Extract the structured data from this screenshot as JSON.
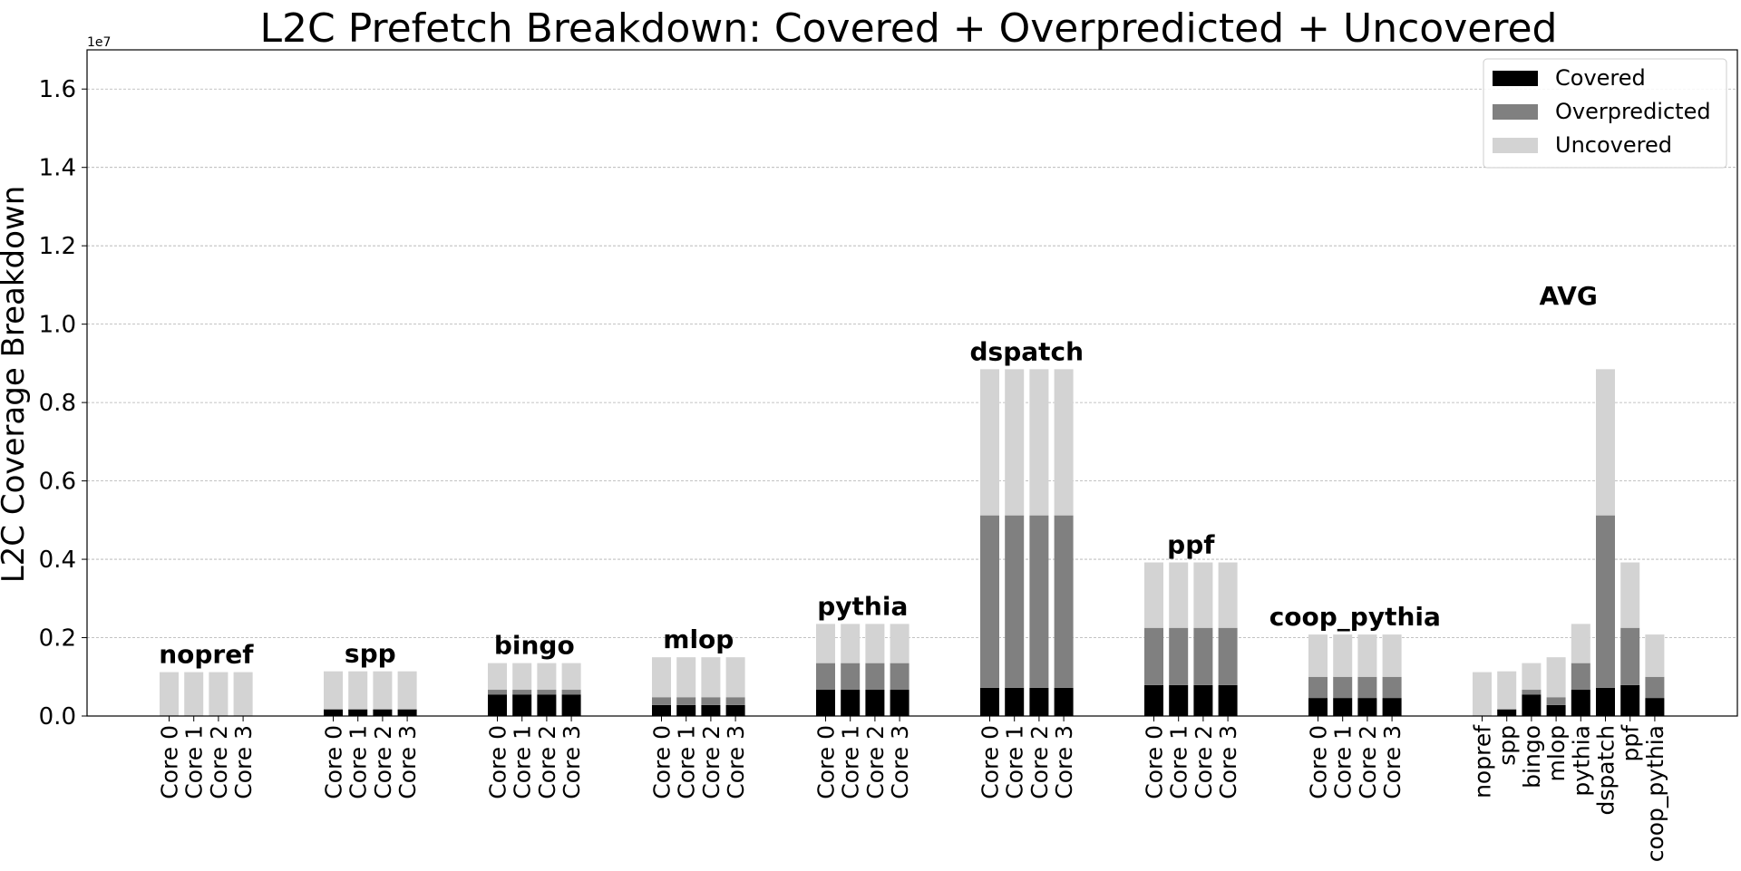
{
  "chart_data": {
    "type": "bar",
    "stacked": true,
    "title": "L2C Prefetch Breakdown: Covered + Overpredicted + Uncovered",
    "ylabel": "L2C Coverage Breakdown",
    "xlabel": "",
    "y_offset_label": "1e7",
    "ylim": [
      0,
      1.7
    ],
    "yticks": [
      0.0,
      0.2,
      0.4,
      0.6,
      0.8,
      1.0,
      1.2,
      1.4,
      1.6
    ],
    "ytick_labels": [
      "0.0",
      "0.2",
      "0.4",
      "0.6",
      "0.8",
      "1.0",
      "1.2",
      "1.4",
      "1.6"
    ],
    "grid": "horizontal-dashed",
    "legend_position": "top-right",
    "series_names": [
      "Covered",
      "Overpredicted",
      "Uncovered"
    ],
    "colors": [
      "#000000",
      "#808080",
      "#d3d3d3"
    ],
    "groups": [
      {
        "label": "nopref",
        "bars": [
          {
            "label": "Core 0",
            "covered": 0.0,
            "overpredicted": 0.0,
            "uncovered": 0.112
          },
          {
            "label": "Core 1",
            "covered": 0.0,
            "overpredicted": 0.0,
            "uncovered": 0.112
          },
          {
            "label": "Core 2",
            "covered": 0.0,
            "overpredicted": 0.0,
            "uncovered": 0.112
          },
          {
            "label": "Core 3",
            "covered": 0.0,
            "overpredicted": 0.0,
            "uncovered": 0.112
          }
        ]
      },
      {
        "label": "spp",
        "bars": [
          {
            "label": "Core 0",
            "covered": 0.017,
            "overpredicted": 0.0,
            "uncovered": 0.097
          },
          {
            "label": "Core 1",
            "covered": 0.017,
            "overpredicted": 0.0,
            "uncovered": 0.097
          },
          {
            "label": "Core 2",
            "covered": 0.017,
            "overpredicted": 0.0,
            "uncovered": 0.097
          },
          {
            "label": "Core 3",
            "covered": 0.017,
            "overpredicted": 0.0,
            "uncovered": 0.097
          }
        ]
      },
      {
        "label": "bingo",
        "bars": [
          {
            "label": "Core 0",
            "covered": 0.055,
            "overpredicted": 0.012,
            "uncovered": 0.068
          },
          {
            "label": "Core 1",
            "covered": 0.055,
            "overpredicted": 0.012,
            "uncovered": 0.068
          },
          {
            "label": "Core 2",
            "covered": 0.055,
            "overpredicted": 0.012,
            "uncovered": 0.068
          },
          {
            "label": "Core 3",
            "covered": 0.055,
            "overpredicted": 0.012,
            "uncovered": 0.068
          }
        ]
      },
      {
        "label": "mlop",
        "bars": [
          {
            "label": "Core 0",
            "covered": 0.028,
            "overpredicted": 0.02,
            "uncovered": 0.102
          },
          {
            "label": "Core 1",
            "covered": 0.028,
            "overpredicted": 0.02,
            "uncovered": 0.102
          },
          {
            "label": "Core 2",
            "covered": 0.028,
            "overpredicted": 0.02,
            "uncovered": 0.102
          },
          {
            "label": "Core 3",
            "covered": 0.028,
            "overpredicted": 0.02,
            "uncovered": 0.102
          }
        ]
      },
      {
        "label": "pythia",
        "bars": [
          {
            "label": "Core 0",
            "covered": 0.067,
            "overpredicted": 0.068,
            "uncovered": 0.1
          },
          {
            "label": "Core 1",
            "covered": 0.067,
            "overpredicted": 0.068,
            "uncovered": 0.1
          },
          {
            "label": "Core 2",
            "covered": 0.067,
            "overpredicted": 0.068,
            "uncovered": 0.1
          },
          {
            "label": "Core 3",
            "covered": 0.067,
            "overpredicted": 0.068,
            "uncovered": 0.1
          }
        ]
      },
      {
        "label": "dspatch",
        "bars": [
          {
            "label": "Core 0",
            "covered": 0.072,
            "overpredicted": 0.44,
            "uncovered": 0.373
          },
          {
            "label": "Core 1",
            "covered": 0.072,
            "overpredicted": 0.44,
            "uncovered": 0.373
          },
          {
            "label": "Core 2",
            "covered": 0.072,
            "overpredicted": 0.44,
            "uncovered": 0.373
          },
          {
            "label": "Core 3",
            "covered": 0.072,
            "overpredicted": 0.44,
            "uncovered": 0.373
          }
        ]
      },
      {
        "label": "ppf",
        "bars": [
          {
            "label": "Core 0",
            "covered": 0.079,
            "overpredicted": 0.146,
            "uncovered": 0.167
          },
          {
            "label": "Core 1",
            "covered": 0.079,
            "overpredicted": 0.146,
            "uncovered": 0.167
          },
          {
            "label": "Core 2",
            "covered": 0.079,
            "overpredicted": 0.146,
            "uncovered": 0.167
          },
          {
            "label": "Core 3",
            "covered": 0.079,
            "overpredicted": 0.146,
            "uncovered": 0.167
          }
        ]
      },
      {
        "label": "coop_pythia",
        "bars": [
          {
            "label": "Core 0",
            "covered": 0.046,
            "overpredicted": 0.054,
            "uncovered": 0.108
          },
          {
            "label": "Core 1",
            "covered": 0.046,
            "overpredicted": 0.054,
            "uncovered": 0.108
          },
          {
            "label": "Core 2",
            "covered": 0.046,
            "overpredicted": 0.054,
            "uncovered": 0.108
          },
          {
            "label": "Core 3",
            "covered": 0.046,
            "overpredicted": 0.054,
            "uncovered": 0.108
          }
        ]
      },
      {
        "label": "AVG",
        "label_y": 1.05,
        "bars": [
          {
            "label": "nopref",
            "covered": 0.0,
            "overpredicted": 0.0,
            "uncovered": 0.112
          },
          {
            "label": "spp",
            "covered": 0.017,
            "overpredicted": 0.0,
            "uncovered": 0.097
          },
          {
            "label": "bingo",
            "covered": 0.055,
            "overpredicted": 0.012,
            "uncovered": 0.068
          },
          {
            "label": "mlop",
            "covered": 0.028,
            "overpredicted": 0.02,
            "uncovered": 0.102
          },
          {
            "label": "pythia",
            "covered": 0.067,
            "overpredicted": 0.068,
            "uncovered": 0.1
          },
          {
            "label": "dspatch",
            "covered": 0.072,
            "overpredicted": 0.44,
            "uncovered": 0.373
          },
          {
            "label": "ppf",
            "covered": 0.079,
            "overpredicted": 0.146,
            "uncovered": 0.167
          },
          {
            "label": "coop_pythia",
            "covered": 0.046,
            "overpredicted": 0.054,
            "uncovered": 0.108
          }
        ]
      }
    ]
  }
}
